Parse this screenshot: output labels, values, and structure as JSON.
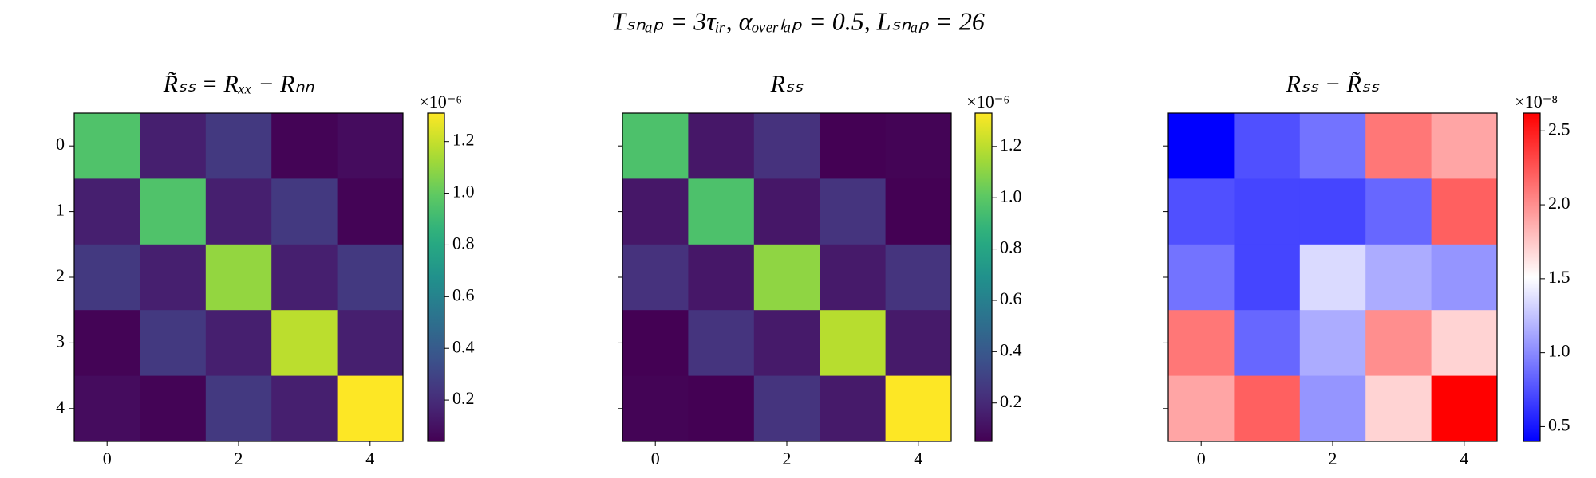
{
  "title": "Tₛₙₐₚ = 3τᵢᵣ,   αₒᵥₑᵣₗₐₚ = 0.5,   Lₛₙₐₚ = 26",
  "chart_data": [
    {
      "type": "heatmap",
      "title": "R̃ₛₛ = Rₓₓ − Rₙₙ",
      "cmap": "viridis",
      "z": [
        [
          0.95,
          0.15,
          0.25,
          0.05,
          0.08
        ],
        [
          0.15,
          0.95,
          0.15,
          0.25,
          0.05
        ],
        [
          0.25,
          0.15,
          1.1,
          0.15,
          0.25
        ],
        [
          0.05,
          0.25,
          0.15,
          1.18,
          0.15
        ],
        [
          0.08,
          0.05,
          0.25,
          0.15,
          1.31
        ]
      ],
      "xticks": [
        0,
        2,
        4
      ],
      "yticks": [
        0,
        1,
        2,
        3,
        4
      ],
      "show_ytick_labels": true,
      "clim": [
        0.04,
        1.31
      ],
      "cticks": [
        0.2,
        0.4,
        0.6,
        0.8,
        {
          "value": 1,
          "label": "1.0"
        },
        1.2
      ],
      "offset_label": "×10⁻⁶"
    },
    {
      "type": "heatmap",
      "title": "Rₛₛ",
      "cmap": "viridis",
      "z": [
        [
          0.96,
          0.13,
          0.23,
          0.05,
          0.06
        ],
        [
          0.13,
          0.96,
          0.13,
          0.24,
          0.05
        ],
        [
          0.23,
          0.13,
          1.11,
          0.14,
          0.24
        ],
        [
          0.05,
          0.24,
          0.14,
          1.19,
          0.14
        ],
        [
          0.06,
          0.05,
          0.24,
          0.14,
          1.33
        ]
      ],
      "xticks": [
        0,
        2,
        4
      ],
      "yticks": [
        0,
        1,
        2,
        3,
        4
      ],
      "show_ytick_labels": false,
      "clim": [
        0.05,
        1.33
      ],
      "cticks": [
        0.2,
        0.4,
        0.6,
        0.8,
        {
          "value": 1,
          "label": "1.0"
        },
        1.2
      ],
      "offset_label": "×10⁻⁶"
    },
    {
      "type": "heatmap",
      "title": "Rₛₛ − R̃ₛₛ",
      "cmap": "bwr",
      "z": [
        [
          0.4,
          0.75,
          0.9,
          2.1,
          1.9
        ],
        [
          0.75,
          0.7,
          0.7,
          0.85,
          2.2
        ],
        [
          0.9,
          0.7,
          1.35,
          1.15,
          1.05
        ],
        [
          2.1,
          0.85,
          1.15,
          2.0,
          1.7
        ],
        [
          1.9,
          2.2,
          1.05,
          1.7,
          2.62
        ]
      ],
      "xticks": [
        0,
        2,
        4
      ],
      "yticks": [
        0,
        1,
        2,
        3,
        4
      ],
      "show_ytick_labels": false,
      "clim": [
        0.4,
        2.62
      ],
      "cticks": [
        0.5,
        {
          "value": 1,
          "label": "1.0"
        },
        1.5,
        {
          "value": 2,
          "label": "2.0"
        },
        2.5
      ],
      "offset_label": "×10⁻⁸"
    }
  ]
}
